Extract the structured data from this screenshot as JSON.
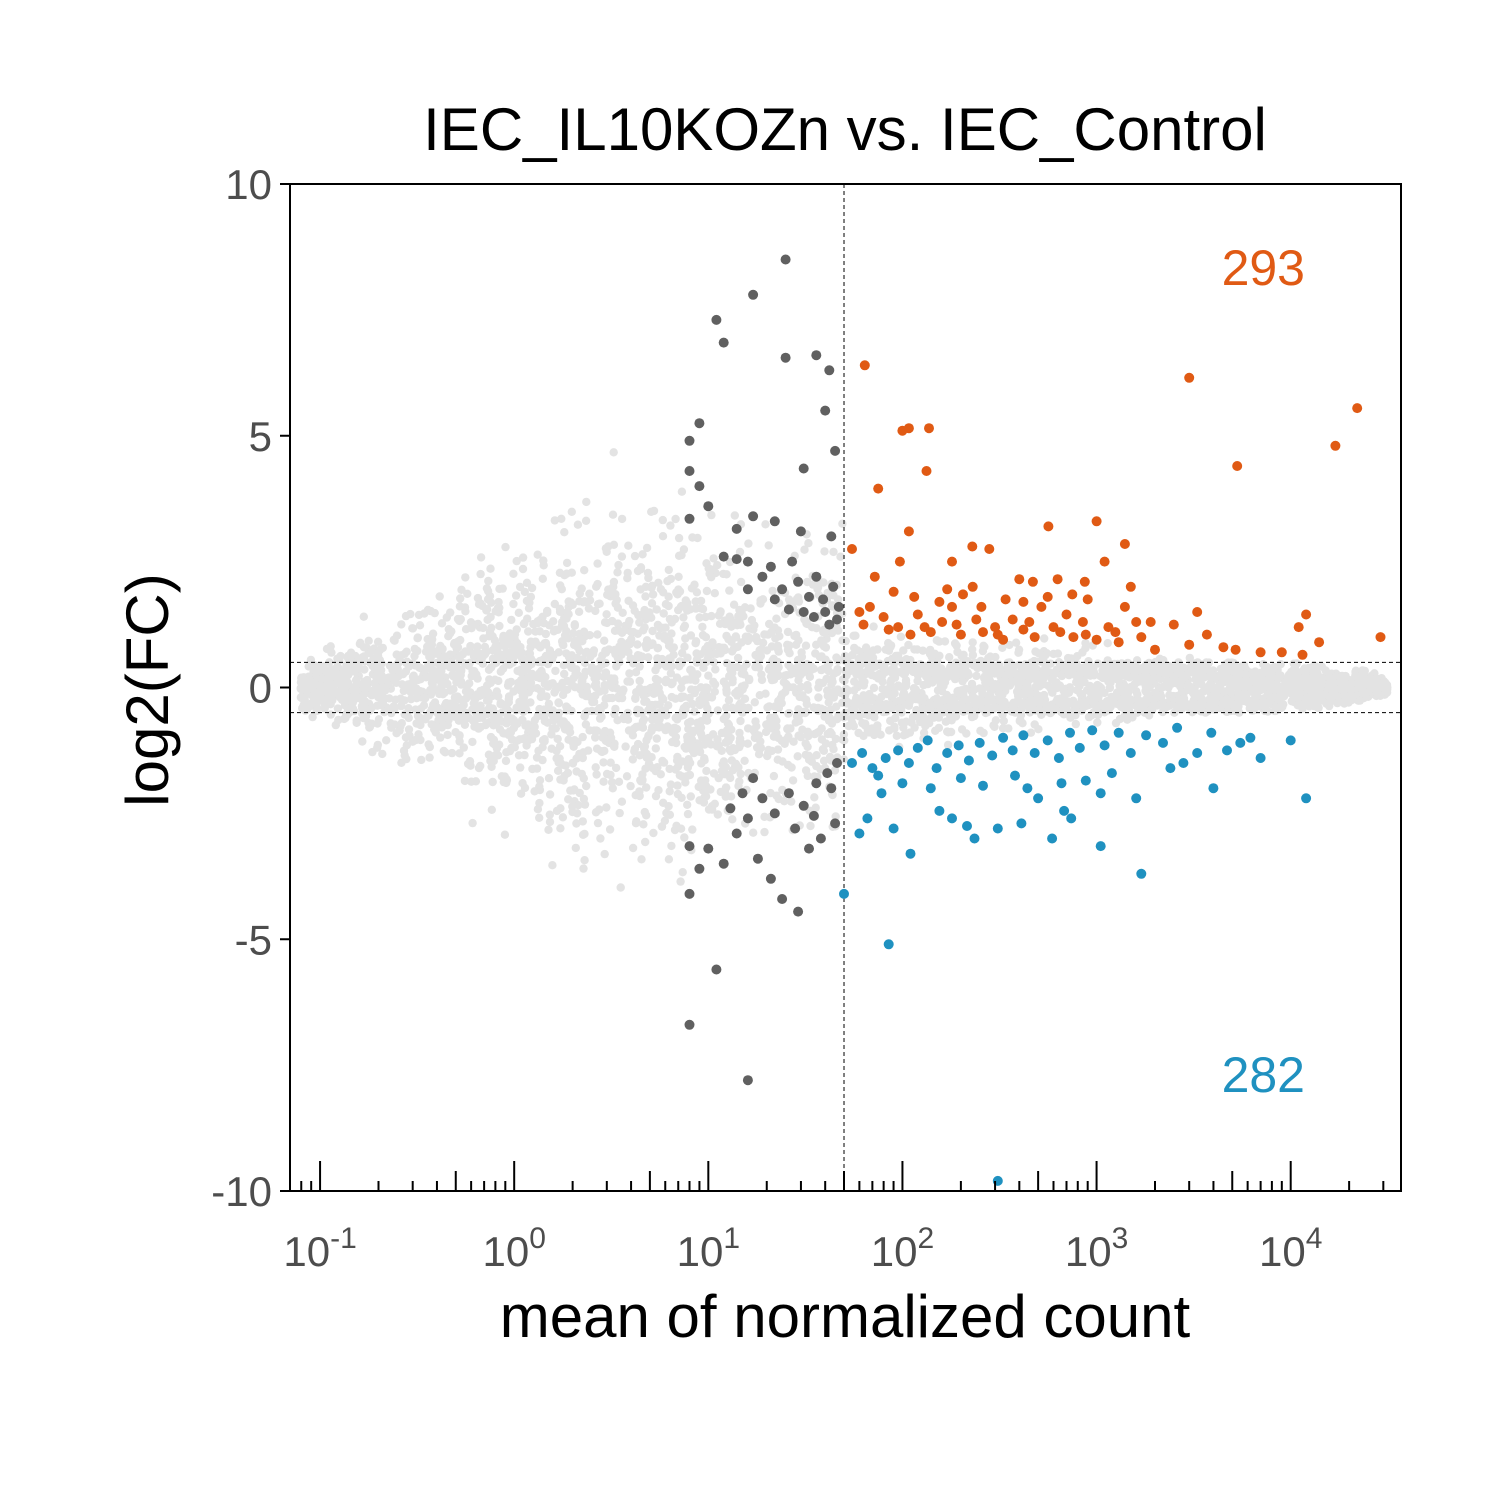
{
  "chart_data": {
    "type": "scatter",
    "title": "IEC_IL10KOZn vs. IEC_Control",
    "xlabel": "mean of normalized count",
    "ylabel": "log2(FC)",
    "x_scale": "log10",
    "xlim": [
      0.07,
      37000
    ],
    "ylim": [
      -10,
      10
    ],
    "y_ticks": [
      "10",
      "5",
      "0",
      "-5",
      "-10"
    ],
    "x_ticks": [
      {
        "base": "10",
        "exp": "-1"
      },
      {
        "base": "10",
        "exp": "0"
      },
      {
        "base": "10",
        "exp": "1"
      },
      {
        "base": "10",
        "exp": "2"
      },
      {
        "base": "10",
        "exp": "3"
      },
      {
        "base": "10",
        "exp": "4"
      }
    ],
    "reference_lines": {
      "x": 50,
      "y": [
        0.5,
        -0.5
      ]
    },
    "counts": {
      "up": "293",
      "down": "282"
    },
    "colors": {
      "up": "#e05a14",
      "down": "#1f91c0",
      "filtered": "#606060",
      "background": "#e3e3e3"
    },
    "series": [
      {
        "group": "up",
        "points": [
          [
            64,
            6.4
          ],
          [
            3000,
            6.15
          ],
          [
            22000,
            5.55
          ],
          [
            100,
            5.1
          ],
          [
            108,
            5.15
          ],
          [
            137,
            5.15
          ],
          [
            17000,
            4.8
          ],
          [
            5300,
            4.4
          ],
          [
            133,
            4.3
          ],
          [
            75,
            3.95
          ],
          [
            565,
            3.2
          ],
          [
            1000,
            3.3
          ],
          [
            108,
            3.1
          ],
          [
            55,
            2.75
          ],
          [
            229,
            2.8
          ],
          [
            280,
            2.75
          ],
          [
            1400,
            2.85
          ],
          [
            1500,
            2.0
          ],
          [
            1400,
            1.6
          ],
          [
            97,
            2.5
          ],
          [
            180,
            2.5
          ],
          [
            230,
            2.0
          ],
          [
            400,
            2.15
          ],
          [
            470,
            2.1
          ],
          [
            630,
            2.15
          ],
          [
            870,
            2.1
          ],
          [
            1100,
            2.5
          ],
          [
            60,
            1.5
          ],
          [
            63,
            1.25
          ],
          [
            80,
            1.4
          ],
          [
            95,
            1.2
          ],
          [
            110,
            1.05
          ],
          [
            120,
            1.45
          ],
          [
            140,
            1.1
          ],
          [
            160,
            1.3
          ],
          [
            180,
            1.6
          ],
          [
            200,
            1.05
          ],
          [
            240,
            1.35
          ],
          [
            260,
            1.1
          ],
          [
            300,
            1.2
          ],
          [
            330,
            0.95
          ],
          [
            370,
            1.35
          ],
          [
            420,
            1.15
          ],
          [
            480,
            1.0
          ],
          [
            520,
            1.6
          ],
          [
            600,
            1.2
          ],
          [
            700,
            1.45
          ],
          [
            760,
            1.0
          ],
          [
            850,
            1.3
          ],
          [
            1000,
            0.95
          ],
          [
            1150,
            1.2
          ],
          [
            1300,
            0.9
          ],
          [
            1700,
            1.0
          ],
          [
            2000,
            0.75
          ],
          [
            2500,
            1.25
          ],
          [
            3000,
            0.85
          ],
          [
            3700,
            1.05
          ],
          [
            4500,
            0.8
          ],
          [
            5200,
            0.75
          ],
          [
            7000,
            0.7
          ],
          [
            12000,
            1.45
          ],
          [
            11000,
            1.2
          ],
          [
            9000,
            0.7
          ],
          [
            14000,
            0.9
          ],
          [
            29000,
            1.0
          ],
          [
            11500,
            0.65
          ],
          [
            3300,
            1.5
          ],
          [
            1900,
            1.3
          ],
          [
            900,
            1.75
          ],
          [
            750,
            1.85
          ],
          [
            560,
            1.8
          ],
          [
            420,
            1.7
          ],
          [
            340,
            1.75
          ],
          [
            255,
            1.6
          ],
          [
            205,
            1.85
          ],
          [
            170,
            1.95
          ],
          [
            155,
            1.7
          ],
          [
            115,
            1.8
          ],
          [
            90,
            1.9
          ],
          [
            72,
            2.2
          ],
          [
            68,
            1.6
          ],
          [
            85,
            1.15
          ],
          [
            130,
            1.2
          ],
          [
            190,
            1.25
          ],
          [
            310,
            1.05
          ],
          [
            450,
            1.3
          ],
          [
            650,
            1.1
          ],
          [
            880,
            1.05
          ],
          [
            1250,
            1.1
          ],
          [
            1600,
            1.3
          ]
        ]
      },
      {
        "group": "down",
        "points": [
          [
            50,
            -4.1
          ],
          [
            85,
            -5.1
          ],
          [
            310,
            -9.8
          ],
          [
            1700,
            -3.7
          ],
          [
            1050,
            -3.15
          ],
          [
            12000,
            -2.2
          ],
          [
            4000,
            -2.0
          ],
          [
            2800,
            -1.5
          ],
          [
            7000,
            -1.4
          ],
          [
            5500,
            -1.1
          ],
          [
            10000,
            -1.05
          ],
          [
            60,
            -2.9
          ],
          [
            66,
            -2.6
          ],
          [
            78,
            -2.1
          ],
          [
            90,
            -2.8
          ],
          [
            110,
            -3.3
          ],
          [
            155,
            -2.45
          ],
          [
            180,
            -2.6
          ],
          [
            215,
            -2.75
          ],
          [
            235,
            -3.0
          ],
          [
            310,
            -2.8
          ],
          [
            410,
            -2.7
          ],
          [
            440,
            -2.0
          ],
          [
            500,
            -2.2
          ],
          [
            590,
            -3.0
          ],
          [
            680,
            -2.45
          ],
          [
            740,
            -2.6
          ],
          [
            1050,
            -2.1
          ],
          [
            1600,
            -2.2
          ],
          [
            55,
            -1.5
          ],
          [
            62,
            -1.3
          ],
          [
            70,
            -1.6
          ],
          [
            82,
            -1.4
          ],
          [
            95,
            -1.25
          ],
          [
            108,
            -1.5
          ],
          [
            120,
            -1.2
          ],
          [
            135,
            -1.05
          ],
          [
            150,
            -1.6
          ],
          [
            170,
            -1.3
          ],
          [
            195,
            -1.15
          ],
          [
            220,
            -1.45
          ],
          [
            250,
            -1.1
          ],
          [
            290,
            -1.35
          ],
          [
            330,
            -1.0
          ],
          [
            370,
            -1.25
          ],
          [
            420,
            -0.95
          ],
          [
            480,
            -1.3
          ],
          [
            560,
            -1.05
          ],
          [
            640,
            -1.4
          ],
          [
            730,
            -0.9
          ],
          [
            820,
            -1.2
          ],
          [
            950,
            -0.85
          ],
          [
            1100,
            -1.15
          ],
          [
            1300,
            -0.9
          ],
          [
            1500,
            -1.3
          ],
          [
            1800,
            -0.95
          ],
          [
            2200,
            -1.1
          ],
          [
            2600,
            -0.8
          ],
          [
            3300,
            -1.3
          ],
          [
            3900,
            -0.9
          ],
          [
            4700,
            -1.25
          ],
          [
            6200,
            -1.0
          ],
          [
            2400,
            -1.6
          ],
          [
            1200,
            -1.7
          ],
          [
            880,
            -1.85
          ],
          [
            660,
            -1.9
          ],
          [
            380,
            -1.75
          ],
          [
            260,
            -1.95
          ],
          [
            200,
            -1.8
          ],
          [
            140,
            -2.0
          ],
          [
            100,
            -1.9
          ],
          [
            75,
            -1.75
          ]
        ]
      },
      {
        "group": "filtered",
        "points": [
          [
            25,
            8.5
          ],
          [
            17,
            7.8
          ],
          [
            11,
            7.3
          ],
          [
            12,
            6.85
          ],
          [
            25,
            6.55
          ],
          [
            36,
            6.6
          ],
          [
            42,
            6.3
          ],
          [
            40,
            5.5
          ],
          [
            9,
            5.25
          ],
          [
            8,
            4.9
          ],
          [
            8,
            4.3
          ],
          [
            31,
            4.35
          ],
          [
            45,
            4.7
          ],
          [
            9,
            4.0
          ],
          [
            10,
            3.6
          ],
          [
            8,
            3.35
          ],
          [
            14,
            3.15
          ],
          [
            17,
            3.4
          ],
          [
            22,
            3.3
          ],
          [
            30,
            3.1
          ],
          [
            43,
            3.0
          ],
          [
            12,
            2.6
          ],
          [
            14,
            2.55
          ],
          [
            16,
            2.5
          ],
          [
            19,
            2.2
          ],
          [
            21,
            2.4
          ],
          [
            24,
            1.95
          ],
          [
            27,
            2.5
          ],
          [
            29,
            2.1
          ],
          [
            33,
            1.8
          ],
          [
            36,
            2.2
          ],
          [
            40,
            1.5
          ],
          [
            44,
            2.0
          ],
          [
            47,
            1.6
          ],
          [
            16,
            1.95
          ],
          [
            22,
            1.75
          ],
          [
            26,
            1.55
          ],
          [
            31,
            1.5
          ],
          [
            35,
            1.4
          ],
          [
            39,
            1.75
          ],
          [
            42,
            1.25
          ],
          [
            46,
            1.35
          ],
          [
            8,
            -6.7
          ],
          [
            16,
            -7.8
          ],
          [
            11,
            -5.6
          ],
          [
            8,
            -3.15
          ],
          [
            9,
            -3.6
          ],
          [
            10,
            -3.2
          ],
          [
            8,
            -4.1
          ],
          [
            12,
            -3.5
          ],
          [
            14,
            -2.9
          ],
          [
            16,
            -2.6
          ],
          [
            18,
            -3.4
          ],
          [
            21,
            -3.8
          ],
          [
            24,
            -4.2
          ],
          [
            29,
            -4.45
          ],
          [
            33,
            -3.2
          ],
          [
            38,
            -3.0
          ],
          [
            45,
            -2.7
          ],
          [
            19,
            -2.2
          ],
          [
            22,
            -2.5
          ],
          [
            26,
            -2.1
          ],
          [
            31,
            -2.35
          ],
          [
            36,
            -1.9
          ],
          [
            41,
            -1.7
          ],
          [
            46,
            -1.5
          ],
          [
            15,
            -2.1
          ],
          [
            17,
            -1.8
          ],
          [
            28,
            -2.8
          ],
          [
            13,
            -2.4
          ],
          [
            35,
            -2.55
          ],
          [
            43,
            -2.0
          ]
        ]
      }
    ]
  }
}
